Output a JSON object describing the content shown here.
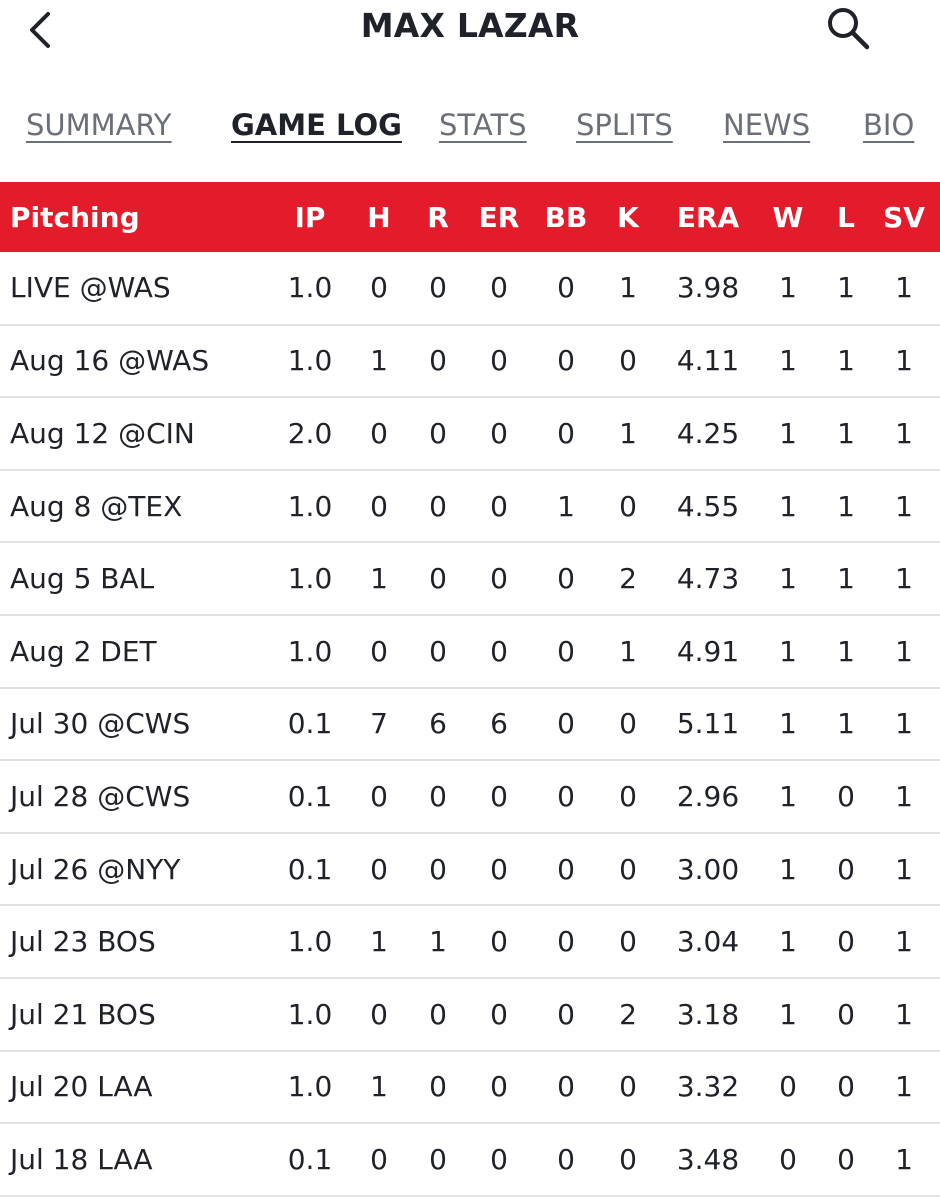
{
  "header": {
    "title": "MAX LAZAR",
    "back_icon": "chevron-left-icon",
    "search_icon": "search-icon"
  },
  "tabs": [
    {
      "label": "SUMMARY",
      "active": false
    },
    {
      "label": "GAME LOG",
      "active": true
    },
    {
      "label": "STATS",
      "active": false
    },
    {
      "label": "SPLITS",
      "active": false
    },
    {
      "label": "NEWS",
      "active": false
    },
    {
      "label": "BIO",
      "active": false
    }
  ],
  "colors": {
    "accent": "#e41b2a",
    "text": "#1f2229",
    "tab_inactive": "#6b6f78"
  },
  "table": {
    "columns": [
      "Pitching",
      "IP",
      "H",
      "R",
      "ER",
      "BB",
      "K",
      "ERA",
      "W",
      "L",
      "SV"
    ],
    "rows": [
      [
        "LIVE @WAS",
        "1.0",
        "0",
        "0",
        "0",
        "0",
        "1",
        "3.98",
        "1",
        "1",
        "1"
      ],
      [
        "Aug 16 @WAS",
        "1.0",
        "1",
        "0",
        "0",
        "0",
        "0",
        "4.11",
        "1",
        "1",
        "1"
      ],
      [
        "Aug 12 @CIN",
        "2.0",
        "0",
        "0",
        "0",
        "0",
        "1",
        "4.25",
        "1",
        "1",
        "1"
      ],
      [
        "Aug 8 @TEX",
        "1.0",
        "0",
        "0",
        "0",
        "1",
        "0",
        "4.55",
        "1",
        "1",
        "1"
      ],
      [
        "Aug 5 BAL",
        "1.0",
        "1",
        "0",
        "0",
        "0",
        "2",
        "4.73",
        "1",
        "1",
        "1"
      ],
      [
        "Aug 2 DET",
        "1.0",
        "0",
        "0",
        "0",
        "0",
        "1",
        "4.91",
        "1",
        "1",
        "1"
      ],
      [
        "Jul 30 @CWS",
        "0.1",
        "7",
        "6",
        "6",
        "0",
        "0",
        "5.11",
        "1",
        "1",
        "1"
      ],
      [
        "Jul 28 @CWS",
        "0.1",
        "0",
        "0",
        "0",
        "0",
        "0",
        "2.96",
        "1",
        "0",
        "1"
      ],
      [
        "Jul 26 @NYY",
        "0.1",
        "0",
        "0",
        "0",
        "0",
        "0",
        "3.00",
        "1",
        "0",
        "1"
      ],
      [
        "Jul 23 BOS",
        "1.0",
        "1",
        "1",
        "0",
        "0",
        "0",
        "3.04",
        "1",
        "0",
        "1"
      ],
      [
        "Jul 21 BOS",
        "1.0",
        "0",
        "0",
        "0",
        "0",
        "2",
        "3.18",
        "1",
        "0",
        "1"
      ],
      [
        "Jul 20 LAA",
        "1.0",
        "1",
        "0",
        "0",
        "0",
        "0",
        "3.32",
        "0",
        "0",
        "1"
      ],
      [
        "Jul 18 LAA",
        "0.1",
        "0",
        "0",
        "0",
        "0",
        "0",
        "3.48",
        "0",
        "0",
        "1"
      ]
    ]
  }
}
